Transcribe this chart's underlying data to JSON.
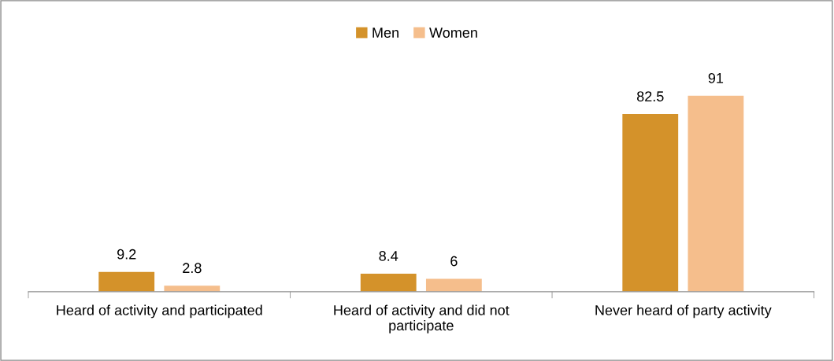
{
  "chart_data": {
    "type": "bar",
    "categories": [
      "Heard of activity and participated",
      "Heard of activity and did not\nparticipate",
      "Never heard of party activity"
    ],
    "series": [
      {
        "name": "Men",
        "color": "#d4922a",
        "values": [
          9.2,
          8.4,
          82.5
        ]
      },
      {
        "name": "Women",
        "color": "#f5be8c",
        "values": [
          2.8,
          6,
          91
        ]
      }
    ],
    "data_labels": true,
    "legend": "top",
    "grid": false
  }
}
